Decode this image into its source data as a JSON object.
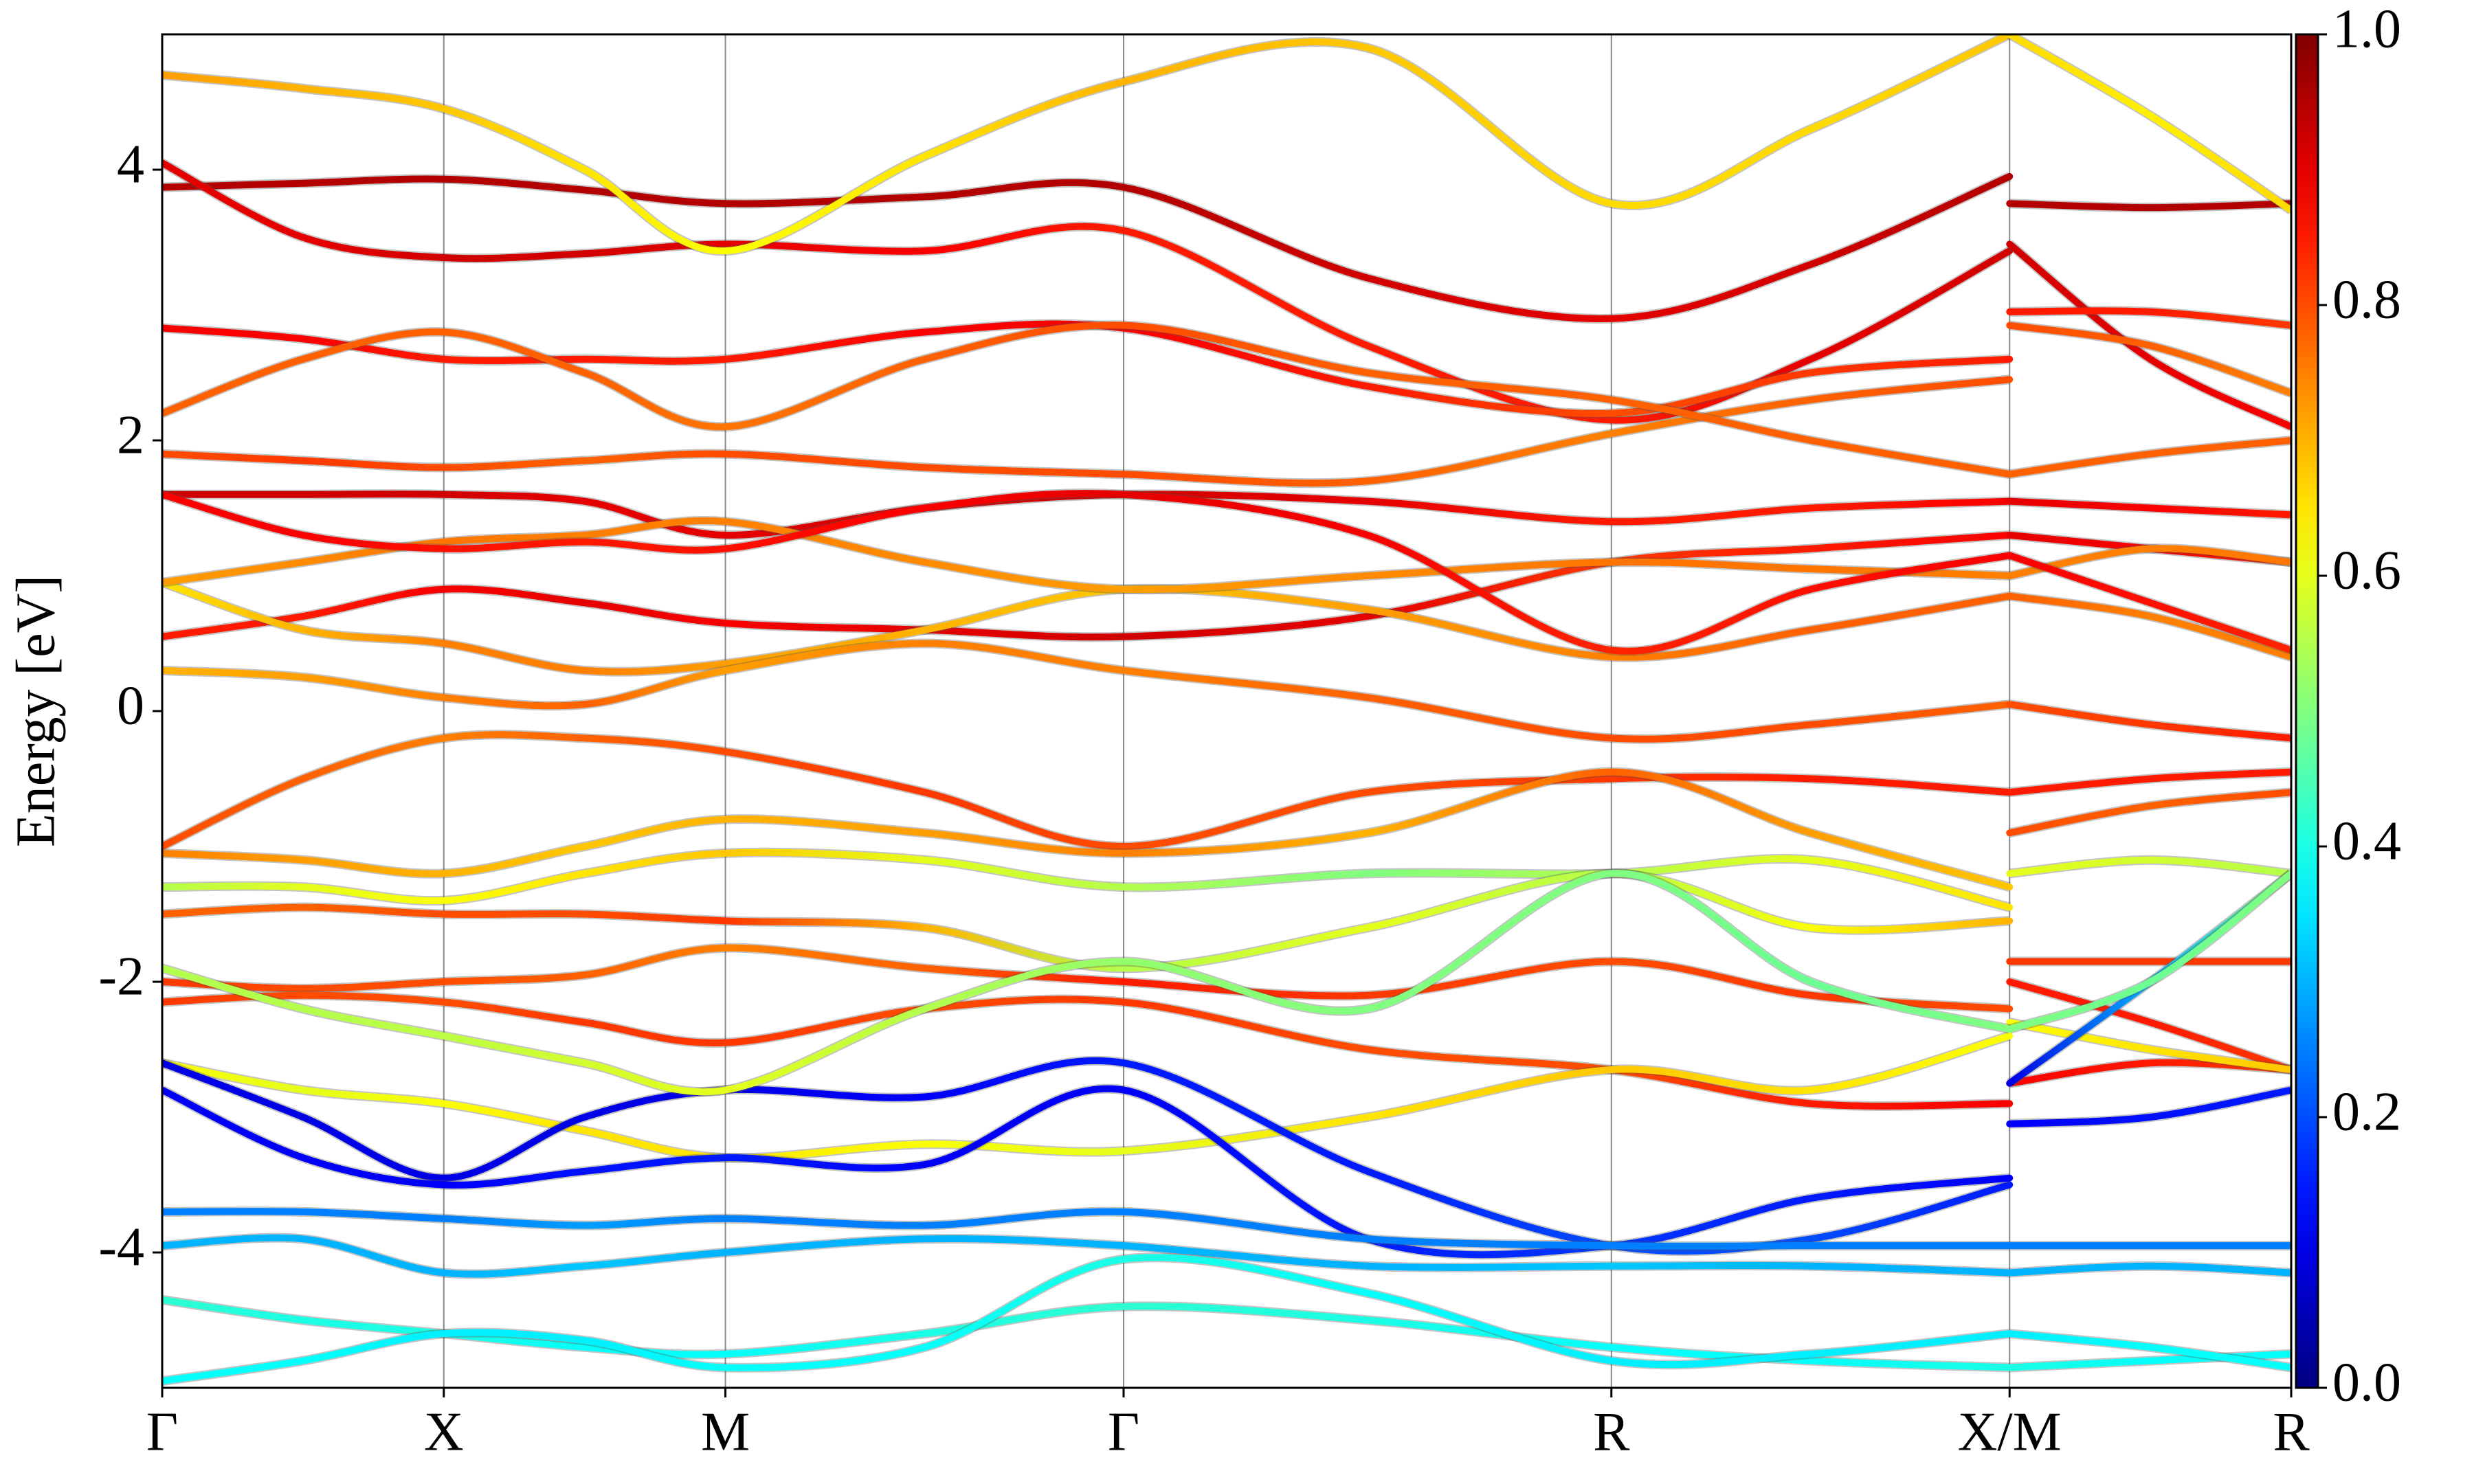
{
  "chart_data": {
    "type": "band",
    "ylabel": "Energy [eV]",
    "x": [
      0,
      0.25,
      0.5,
      0.75,
      1.0,
      1.354,
      1.707,
      2.14,
      2.573,
      2.927,
      3.28,
      3.28,
      3.53,
      3.78
    ],
    "xlim": [
      0,
      3.78
    ],
    "xticks": [
      {
        "value": 0,
        "label": "Γ"
      },
      {
        "value": 0.5,
        "label": "X"
      },
      {
        "value": 1.0,
        "label": "M"
      },
      {
        "value": 1.707,
        "label": "Γ"
      },
      {
        "value": 2.573,
        "label": "R"
      },
      {
        "value": 3.28,
        "label": "X/M"
      },
      {
        "value": 3.78,
        "label": "R"
      }
    ],
    "grid_x": true,
    "ylim": [
      -5,
      5
    ],
    "yticks": [
      -4,
      -2,
      0,
      2,
      4
    ],
    "colormap": "jet",
    "colorbar": {
      "lim": [
        0,
        1
      ],
      "ticks": [
        {
          "value": 0,
          "label": "0.0"
        },
        {
          "value": 0.2,
          "label": "0.2"
        },
        {
          "value": 0.4,
          "label": "0.4"
        },
        {
          "value": 0.6,
          "label": "0.6"
        },
        {
          "value": 0.8,
          "label": "0.8"
        },
        {
          "value": 1,
          "label": "1.0"
        }
      ]
    },
    "series": [
      {
        "values": [
          3.87,
          3.9,
          3.93,
          3.85,
          3.75,
          3.8,
          3.87,
          3.2,
          2.9,
          3.3,
          3.95,
          3.75,
          3.72,
          3.75
        ],
        "weights": [
          0.95,
          0.95,
          0.95,
          0.95,
          0.95,
          0.95,
          0.95,
          0.92,
          0.9,
          0.92,
          0.95,
          0.95,
          0.95,
          0.95
        ]
      },
      {
        "values": [
          4.05,
          3.5,
          3.35,
          3.38,
          3.45,
          3.4,
          3.55,
          2.7,
          2.15,
          2.6,
          3.4,
          3.45,
          2.6,
          2.1
        ],
        "weights": [
          0.9,
          0.9,
          0.92,
          0.92,
          0.9,
          0.88,
          0.85,
          0.85,
          0.85,
          0.9,
          0.92,
          0.92,
          0.9,
          0.88
        ]
      },
      {
        "values": [
          2.83,
          2.75,
          2.6,
          2.6,
          2.6,
          2.8,
          2.83,
          2.4,
          2.2,
          2.5,
          2.6,
          2.95,
          2.95,
          2.85
        ],
        "weights": [
          0.88,
          0.88,
          0.85,
          0.85,
          0.85,
          0.88,
          0.88,
          0.85,
          0.8,
          0.82,
          0.85,
          0.85,
          0.85,
          0.82
        ]
      },
      {
        "values": [
          1.9,
          1.85,
          1.8,
          1.85,
          1.9,
          1.8,
          1.75,
          1.7,
          2.05,
          2.3,
          2.45,
          2.85,
          2.7,
          2.35
        ],
        "weights": [
          0.8,
          0.82,
          0.8,
          0.78,
          0.8,
          0.8,
          0.8,
          0.78,
          0.75,
          0.78,
          0.8,
          0.8,
          0.78,
          0.75
        ]
      },
      {
        "values": [
          1.6,
          1.6,
          1.6,
          1.55,
          1.3,
          1.5,
          1.6,
          1.55,
          1.4,
          1.5,
          1.55,
          1.55,
          1.5,
          1.45
        ],
        "weights": [
          0.92,
          0.92,
          0.92,
          0.9,
          0.9,
          0.92,
          0.92,
          0.9,
          0.85,
          0.85,
          0.88,
          0.9,
          0.88,
          0.85
        ]
      },
      {
        "values": [
          0.55,
          0.7,
          0.9,
          0.8,
          0.65,
          0.6,
          0.55,
          0.7,
          1.1,
          1.2,
          1.3,
          1.3,
          1.2,
          1.1
        ],
        "weights": [
          0.85,
          0.85,
          0.88,
          0.9,
          0.88,
          0.9,
          0.92,
          0.9,
          0.82,
          0.85,
          0.88,
          0.9,
          0.88,
          0.85
        ]
      },
      {
        "values": [
          0.95,
          0.6,
          0.5,
          0.3,
          0.35,
          0.6,
          0.9,
          0.75,
          0.4,
          0.6,
          0.85,
          0.85,
          0.7,
          0.4
        ],
        "weights": [
          0.65,
          0.7,
          0.75,
          0.75,
          0.72,
          0.7,
          0.68,
          0.72,
          0.75,
          0.78,
          0.78,
          0.78,
          0.75,
          0.75
        ]
      },
      {
        "values": [
          0.3,
          0.25,
          0.1,
          0.05,
          0.3,
          0.5,
          0.3,
          0.1,
          -0.2,
          -0.1,
          0.05,
          0.05,
          -0.1,
          -0.2
        ],
        "weights": [
          0.7,
          0.72,
          0.75,
          0.78,
          0.72,
          0.75,
          0.75,
          0.78,
          0.8,
          0.8,
          0.78,
          0.8,
          0.82,
          0.85
        ]
      },
      {
        "values": [
          -1.0,
          -0.5,
          -0.2,
          -0.2,
          -0.3,
          -0.6,
          -1.0,
          -0.6,
          -0.5,
          -0.5,
          -0.6,
          -0.6,
          -0.5,
          -0.45
        ],
        "weights": [
          0.8,
          0.78,
          0.75,
          0.78,
          0.8,
          0.82,
          0.8,
          0.8,
          0.82,
          0.85,
          0.85,
          0.85,
          0.85,
          0.85
        ]
      },
      {
        "values": [
          -1.05,
          -1.1,
          -1.2,
          -1.0,
          -0.8,
          -0.9,
          -1.05,
          -0.9,
          -0.45,
          -0.9,
          -1.3,
          -0.9,
          -0.7,
          -0.6
        ],
        "weights": [
          0.75,
          0.72,
          0.7,
          0.68,
          0.7,
          0.72,
          0.75,
          0.7,
          0.78,
          0.72,
          0.68,
          0.8,
          0.78,
          0.8
        ]
      },
      {
        "values": [
          -1.3,
          -1.3,
          -1.4,
          -1.2,
          -1.05,
          -1.1,
          -1.3,
          -1.2,
          -1.2,
          -1.1,
          -1.45,
          -1.2,
          -1.1,
          -1.2
        ],
        "weights": [
          0.55,
          0.6,
          0.62,
          0.65,
          0.68,
          0.6,
          0.55,
          0.5,
          0.55,
          0.6,
          0.65,
          0.6,
          0.58,
          0.55
        ]
      },
      {
        "values": [
          -1.5,
          -1.45,
          -1.5,
          -1.5,
          -1.55,
          -1.6,
          -1.9,
          -1.6,
          -1.2,
          -1.6,
          -1.55,
          -1.85,
          -1.85,
          -1.85
        ],
        "weights": [
          0.78,
          0.78,
          0.8,
          0.8,
          0.82,
          0.7,
          0.55,
          0.6,
          0.55,
          0.62,
          0.7,
          0.82,
          0.82,
          0.82
        ]
      },
      {
        "values": [
          -2.0,
          -2.05,
          -2.0,
          -1.95,
          -1.75,
          -1.9,
          -2.0,
          -2.1,
          -1.85,
          -2.1,
          -2.2,
          -2.0,
          -2.3,
          -2.65
        ],
        "weights": [
          0.82,
          0.8,
          0.8,
          0.78,
          0.75,
          0.78,
          0.85,
          0.82,
          0.8,
          0.82,
          0.8,
          0.85,
          0.85,
          0.82
        ]
      },
      {
        "values": [
          -2.15,
          -2.1,
          -2.15,
          -2.3,
          -2.45,
          -2.2,
          -2.15,
          -2.5,
          -2.65,
          -2.9,
          -2.9,
          -2.75,
          -2.6,
          -2.65
        ],
        "weights": [
          0.82,
          0.8,
          0.8,
          0.82,
          0.82,
          0.8,
          0.82,
          0.8,
          0.8,
          0.85,
          0.88,
          0.88,
          0.85,
          0.82
        ]
      },
      {
        "values": [
          -2.6,
          -2.8,
          -2.9,
          -3.1,
          -3.3,
          -3.2,
          -3.25,
          -3.0,
          -2.65,
          -2.8,
          -2.4,
          -2.3,
          -2.5,
          -2.65
        ],
        "weights": [
          0.62,
          0.6,
          0.62,
          0.65,
          0.65,
          0.62,
          0.6,
          0.65,
          0.68,
          0.65,
          0.62,
          0.62,
          0.65,
          0.68
        ]
      },
      {
        "values": [
          -2.6,
          -3.0,
          -3.45,
          -3.0,
          -2.8,
          -2.85,
          -2.6,
          -3.4,
          -3.95,
          -3.9,
          -3.5,
          -2.75,
          -2.0,
          -1.2
        ],
        "weights": [
          0.1,
          0.1,
          0.1,
          0.1,
          0.1,
          0.12,
          0.15,
          0.15,
          0.2,
          0.2,
          0.15,
          0.1,
          0.3,
          0.5
        ]
      },
      {
        "values": [
          -2.8,
          -3.3,
          -3.5,
          -3.4,
          -3.3,
          -3.35,
          -2.8,
          -3.9,
          -3.95,
          -3.6,
          -3.45,
          -3.05,
          -3.0,
          -2.8
        ],
        "weights": [
          0.12,
          0.12,
          0.12,
          0.14,
          0.15,
          0.12,
          0.12,
          0.15,
          0.18,
          0.15,
          0.12,
          0.12,
          0.14,
          0.15
        ]
      },
      {
        "values": [
          -3.7,
          -3.7,
          -3.75,
          -3.8,
          -3.75,
          -3.8,
          -3.7,
          -3.9,
          -3.95,
          -3.95,
          -3.95,
          -3.95,
          -3.95,
          -3.95
        ],
        "weights": [
          0.25,
          0.25,
          0.25,
          0.28,
          0.25,
          0.25,
          0.25,
          0.25,
          0.25,
          0.25,
          0.25,
          0.25,
          0.25,
          0.25
        ]
      },
      {
        "values": [
          -3.95,
          -3.9,
          -4.15,
          -4.1,
          -4.0,
          -3.9,
          -3.95,
          -4.1,
          -4.1,
          -4.1,
          -4.15,
          -4.15,
          -4.1,
          -4.15
        ],
        "weights": [
          0.3,
          0.3,
          0.3,
          0.32,
          0.3,
          0.3,
          0.3,
          0.3,
          0.32,
          0.3,
          0.3,
          0.3,
          0.3,
          0.3
        ]
      },
      {
        "values": [
          -4.35,
          -4.5,
          -4.6,
          -4.7,
          -4.75,
          -4.6,
          -4.4,
          -4.5,
          -4.7,
          -4.8,
          -4.85,
          -4.85,
          -4.8,
          -4.75
        ],
        "weights": [
          0.42,
          0.4,
          0.4,
          0.38,
          0.38,
          0.4,
          0.42,
          0.4,
          0.38,
          0.38,
          0.4,
          0.4,
          0.38,
          0.38
        ]
      },
      {
        "values": [
          -4.95,
          -4.8,
          -4.6,
          -4.65,
          -4.85,
          -4.7,
          -4.05,
          -4.3,
          -4.8,
          -4.75,
          -4.6,
          -4.6,
          -4.7,
          -4.85
        ],
        "weights": [
          0.38,
          0.38,
          0.36,
          0.36,
          0.38,
          0.38,
          0.4,
          0.38,
          0.36,
          0.36,
          0.36,
          0.36,
          0.38,
          0.38
        ]
      },
      {
        "values": [
          4.7,
          4.6,
          4.45,
          4.0,
          3.4,
          4.1,
          4.65,
          4.9,
          3.75,
          4.3,
          5.0,
          5.0,
          4.4,
          3.7
        ],
        "weights": [
          0.72,
          0.7,
          0.68,
          0.65,
          0.62,
          0.65,
          0.7,
          0.68,
          0.66,
          0.66,
          0.68,
          0.66,
          0.64,
          0.66
        ]
      },
      {
        "values": [
          0.95,
          1.1,
          1.25,
          1.3,
          1.4,
          1.1,
          0.9,
          1.0,
          1.1,
          1.05,
          1.0,
          1.0,
          1.2,
          1.1
        ],
        "weights": [
          0.72,
          0.74,
          0.76,
          0.75,
          0.75,
          0.74,
          0.72,
          0.74,
          0.76,
          0.76,
          0.75,
          0.75,
          0.75,
          0.76
        ]
      },
      {
        "values": [
          -1.9,
          -2.2,
          -2.4,
          -2.6,
          -2.8,
          -2.2,
          -1.85,
          -2.2,
          -1.2,
          -2.0,
          -2.35,
          -2.35,
          -2.0,
          -1.2
        ],
        "weights": [
          0.55,
          0.55,
          0.56,
          0.58,
          0.6,
          0.55,
          0.52,
          0.5,
          0.5,
          0.48,
          0.5,
          0.5,
          0.48,
          0.5
        ]
      },
      {
        "values": [
          2.2,
          2.6,
          2.8,
          2.5,
          2.1,
          2.6,
          2.85,
          2.5,
          2.3,
          2.0,
          1.75,
          1.75,
          1.9,
          2.0
        ],
        "weights": [
          0.78,
          0.78,
          0.78,
          0.78,
          0.76,
          0.78,
          0.8,
          0.78,
          0.78,
          0.78,
          0.78,
          0.78,
          0.78,
          0.78
        ]
      },
      {
        "values": [
          1.6,
          1.3,
          1.2,
          1.25,
          1.2,
          1.5,
          1.6,
          1.3,
          0.45,
          0.9,
          1.15,
          1.15,
          0.8,
          0.45
        ],
        "weights": [
          0.88,
          0.88,
          0.86,
          0.85,
          0.86,
          0.88,
          0.9,
          0.88,
          0.84,
          0.86,
          0.88,
          0.88,
          0.86,
          0.84
        ]
      }
    ]
  }
}
